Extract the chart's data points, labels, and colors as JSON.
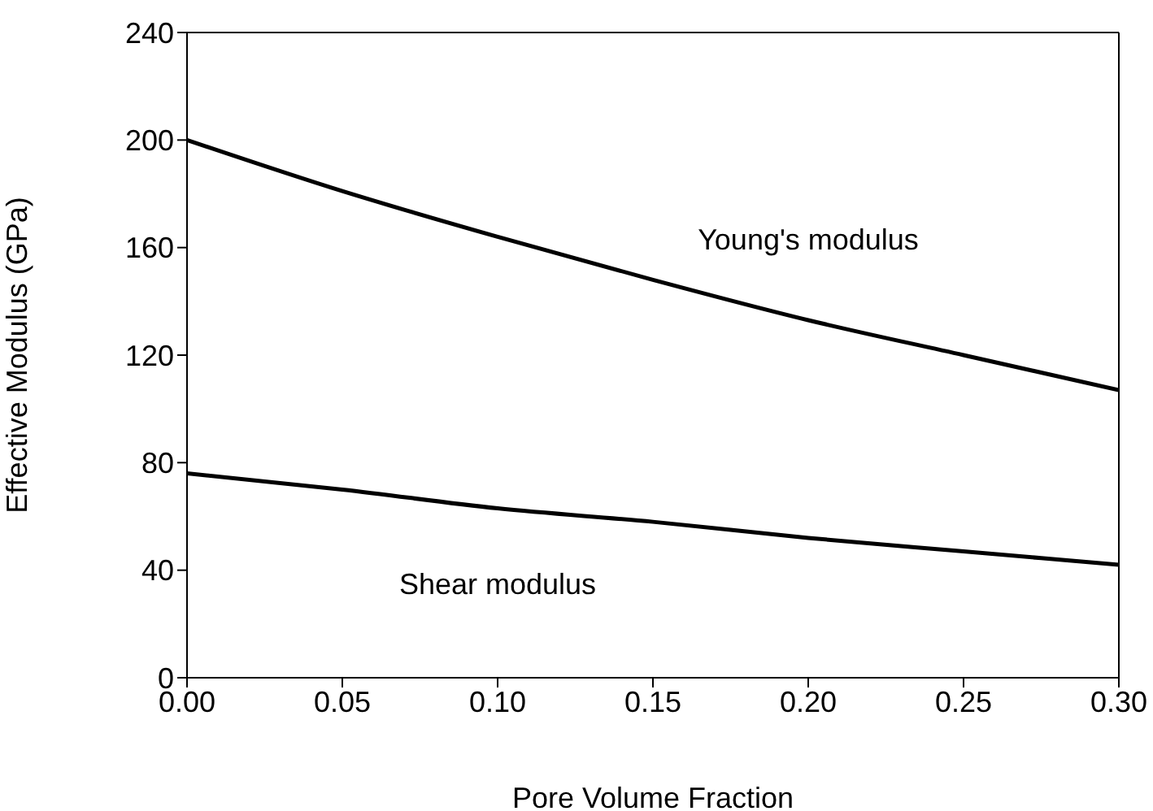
{
  "chart_data": {
    "type": "line",
    "xlabel": "Pore Volume Fraction",
    "ylabel": "Effective Modulus (GPa)",
    "x": [
      0,
      0.05,
      0.1,
      0.15,
      0.2,
      0.25,
      0.3
    ],
    "series": [
      {
        "name": "Young's modulus",
        "color": "#000000",
        "values": [
          200,
          181,
          164,
          148,
          133,
          120,
          107
        ]
      },
      {
        "name": "Shear modulus",
        "color": "#000000",
        "values": [
          76,
          70,
          63,
          58,
          52,
          47,
          42
        ]
      }
    ],
    "xlim": [
      0,
      0.3
    ],
    "xticks": [
      {
        "value": 0,
        "label": "0.00"
      },
      {
        "value": 0.05,
        "label": "0.05"
      },
      {
        "value": 0.1,
        "label": "0.10"
      },
      {
        "value": 0.15,
        "label": "0.15"
      },
      {
        "value": 0.2,
        "label": "0.20"
      },
      {
        "value": 0.25,
        "label": "0.25"
      },
      {
        "value": 0.3,
        "label": "0.30"
      }
    ],
    "ylim": [
      0,
      240
    ],
    "yticks": [
      0,
      40,
      80,
      120,
      160,
      200,
      240
    ],
    "grid": false,
    "marker": "none",
    "line_style": "solid"
  }
}
